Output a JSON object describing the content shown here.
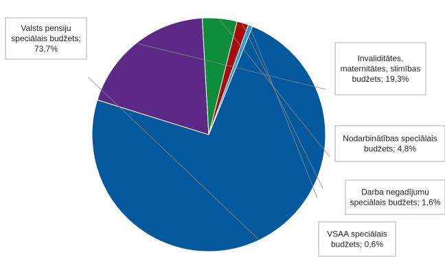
{
  "chart_data": {
    "type": "pie",
    "slices": [
      {
        "label": [
          "Valsts pensiju",
          "speciālais budžets;",
          "73,7%"
        ],
        "value": 73.7,
        "color": "#04599c"
      },
      {
        "label": [
          "Invaliditātes,",
          "maternitātes, slimības",
          "budžets; 19,3%"
        ],
        "value": 19.3,
        "color": "#5c2a86"
      },
      {
        "label": [
          "Nodarbinātības speciālais",
          "budžets; 4,8%"
        ],
        "value": 4.8,
        "color": "#0d8c3a"
      },
      {
        "label": [
          "Darba negadījumu",
          "speciālais budžets; 1,6%"
        ],
        "value": 1.6,
        "color": "#a80d0d"
      },
      {
        "label": [
          "VSAA speciālais",
          "budžets; 0,6%"
        ],
        "value": 0.6,
        "color": "#2c9ad6"
      }
    ],
    "start_angle_deg": 22,
    "direction": "clockwise"
  }
}
